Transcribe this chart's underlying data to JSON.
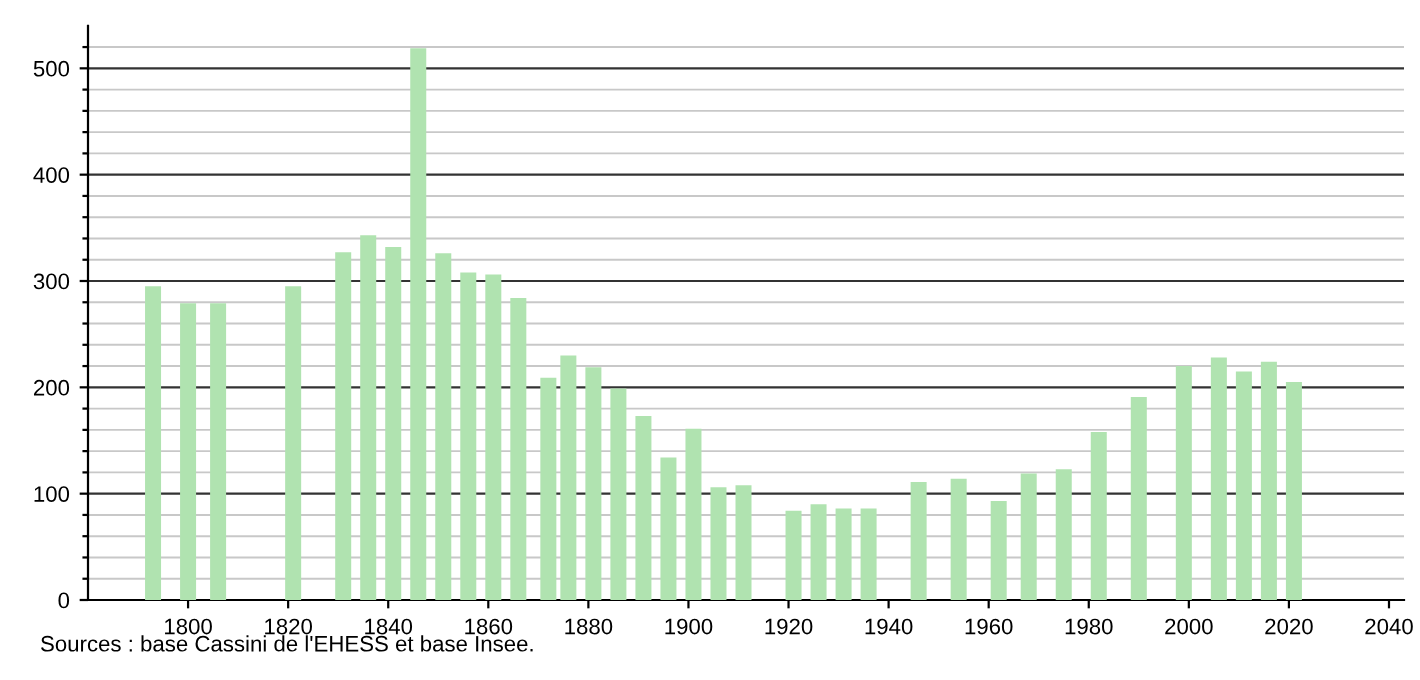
{
  "chart_data": {
    "type": "bar",
    "x": [
      1793,
      1800,
      1806,
      1821,
      1831,
      1836,
      1841,
      1846,
      1851,
      1856,
      1861,
      1866,
      1872,
      1876,
      1881,
      1886,
      1891,
      1896,
      1901,
      1906,
      1911,
      1921,
      1926,
      1931,
      1936,
      1946,
      1954,
      1962,
      1968,
      1975,
      1982,
      1990,
      1999,
      2006,
      2011,
      2016,
      2021
    ],
    "values": [
      295,
      279,
      279,
      295,
      327,
      343,
      332,
      519,
      326,
      308,
      306,
      284,
      209,
      230,
      219,
      199,
      173,
      134,
      161,
      106,
      108,
      84,
      90,
      86,
      86,
      111,
      114,
      93,
      119,
      123,
      158,
      191,
      220,
      228,
      215,
      224,
      205
    ],
    "color": "#b0e3b0",
    "xlim": [
      1780,
      2043
    ],
    "xticks": [
      1800,
      1820,
      1840,
      1860,
      1880,
      1900,
      1920,
      1940,
      1960,
      1980,
      2000,
      2020,
      2040
    ],
    "ylim": [
      0,
      540
    ],
    "yticks": [
      0,
      {
        "value": 20,
        "label": null
      },
      {
        "value": 40,
        "label": null
      },
      {
        "value": 60,
        "label": null
      },
      {
        "value": 80,
        "label": null
      },
      100,
      {
        "value": 120,
        "label": null
      },
      {
        "value": 140,
        "label": null
      },
      {
        "value": 160,
        "label": null
      },
      {
        "value": 180,
        "label": null
      },
      200,
      {
        "value": 220,
        "label": null
      },
      {
        "value": 240,
        "label": null
      },
      {
        "value": 260,
        "label": null
      },
      {
        "value": 280,
        "label": null
      },
      300,
      {
        "value": 320,
        "label": null
      },
      {
        "value": 340,
        "label": null
      },
      {
        "value": 360,
        "label": null
      },
      {
        "value": 380,
        "label": null
      },
      400,
      {
        "value": 420,
        "label": null
      },
      {
        "value": 440,
        "label": null
      },
      {
        "value": 460,
        "label": null
      },
      {
        "value": 480,
        "label": null
      },
      500,
      {
        "value": 520,
        "label": null
      }
    ],
    "grid": "y",
    "annotations": [
      "Sources : base Cassini de l'EHESS et base Insee."
    ]
  }
}
